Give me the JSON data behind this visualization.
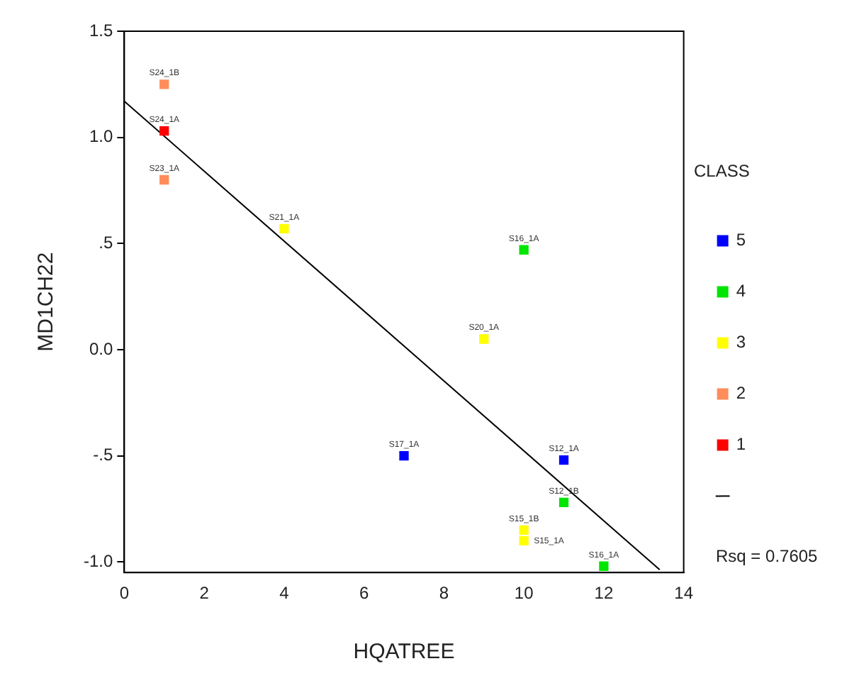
{
  "chart_data": {
    "type": "scatter",
    "xlabel": "HQATREE",
    "ylabel": "MD1CH22",
    "legend_title": "CLASS",
    "legend": "right",
    "marker": "square",
    "grid": false,
    "xlim": [
      0,
      14
    ],
    "xticks": [
      0,
      2,
      4,
      6,
      8,
      10,
      12,
      14
    ],
    "ylim": [
      -1.05,
      1.5
    ],
    "yticks": [
      {
        "value": -1.0,
        "label": "-1.0"
      },
      {
        "value": -0.5,
        "label": "-.5"
      },
      {
        "value": 0,
        "label": "0.0"
      },
      {
        "value": 0.5,
        "label": ".5"
      },
      {
        "value": 1.0,
        "label": "1.0"
      },
      {
        "value": 1.5,
        "label": "1.5"
      }
    ],
    "series": [
      {
        "name": "5",
        "color": "#0000ff",
        "x": [
          7,
          11
        ],
        "values": [
          -0.5,
          -0.52
        ]
      },
      {
        "name": "4",
        "color": "#00e600",
        "x": [
          10,
          11,
          12
        ],
        "values": [
          0.47,
          -0.72,
          -1.02
        ]
      },
      {
        "name": "3",
        "color": "#ffff00",
        "x": [
          4,
          9,
          10,
          10
        ],
        "values": [
          0.57,
          0.05,
          -0.85,
          -0.9
        ]
      },
      {
        "name": "2",
        "color": "#ff8c5a",
        "x": [
          1,
          1
        ],
        "values": [
          1.25,
          0.8
        ]
      },
      {
        "name": "1",
        "color": "#ff0000",
        "x": [
          1
        ],
        "values": [
          1.03
        ]
      },
      {
        "type": "line",
        "marker": "none",
        "color": "#000000",
        "x": [
          0,
          13.4
        ],
        "values": [
          1.17,
          -1.037
        ]
      }
    ],
    "annotations": [
      {
        "text": "S24_1B",
        "x": 1,
        "y": 1.25
      },
      {
        "text": "S24_1A",
        "x": 1,
        "y": 1.03
      },
      {
        "text": "S23_1A",
        "x": 1,
        "y": 0.8
      },
      {
        "text": "S21_1A",
        "x": 4,
        "y": 0.57
      },
      {
        "text": "S16_1A",
        "x": 10,
        "y": 0.47
      },
      {
        "text": "S20_1A",
        "x": 9,
        "y": 0.05
      },
      {
        "text": "S17_1A",
        "x": 7,
        "y": -0.5
      },
      {
        "text": "S12_1A",
        "x": 11,
        "y": -0.52
      },
      {
        "text": "S12_1B",
        "x": 11,
        "y": -0.72
      },
      {
        "text": "S15_1B",
        "x": 10,
        "y": -0.85
      },
      {
        "text": "S15_1A",
        "x": 10,
        "y": -0.9
      },
      {
        "text": "S16_1A",
        "x": 12,
        "y": -1.02
      },
      "Rsq = 0.7605"
    ]
  }
}
